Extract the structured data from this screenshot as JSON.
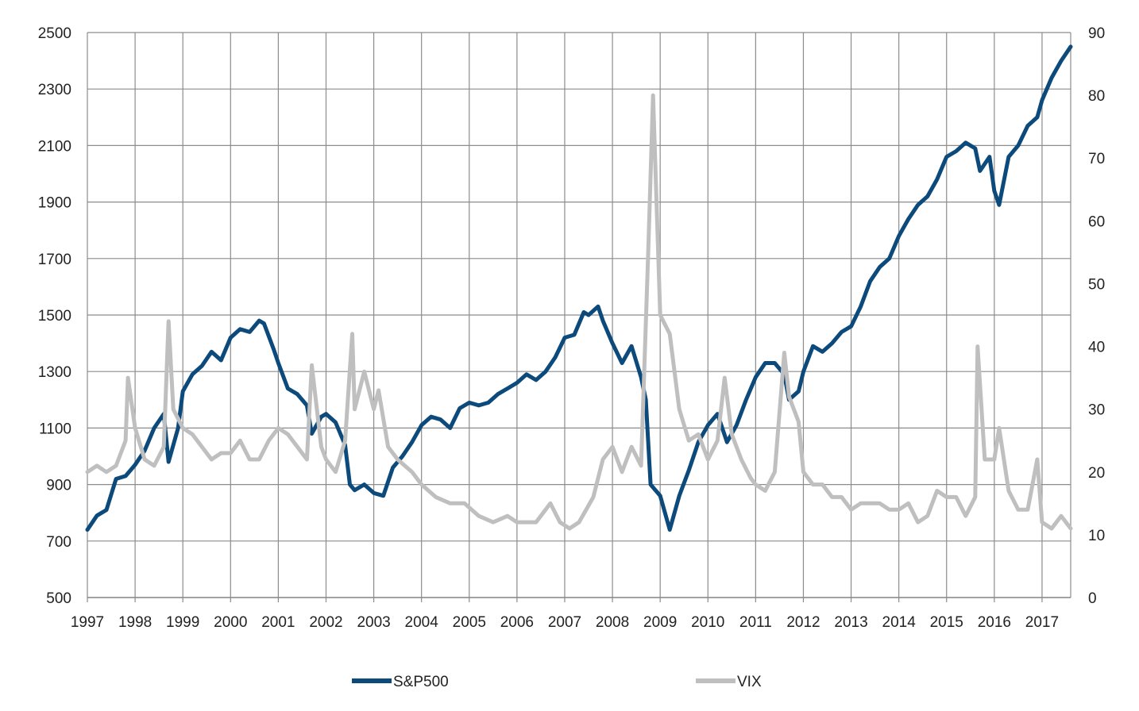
{
  "chart_data": {
    "type": "line",
    "grid": true,
    "legend_position": "bottom",
    "x_ticks": [
      "1997",
      "1998",
      "1999",
      "2000",
      "2001",
      "2002",
      "2003",
      "2004",
      "2005",
      "2006",
      "2007",
      "2008",
      "2009",
      "2010",
      "2011",
      "2012",
      "2013",
      "2014",
      "2015",
      "2016",
      "2017"
    ],
    "xlim": [
      1997.0,
      2017.6
    ],
    "y_left": {
      "ylim": [
        500,
        2500
      ],
      "ticks": [
        500,
        700,
        900,
        1100,
        1300,
        1500,
        1700,
        1900,
        2100,
        2300,
        2500
      ]
    },
    "y_right": {
      "ylim": [
        0,
        90
      ],
      "ticks": [
        0,
        10,
        20,
        30,
        40,
        50,
        60,
        70,
        80,
        90
      ]
    },
    "series": [
      {
        "name": "S&P500",
        "axis": "left",
        "color": "#0d4a7c",
        "x": [
          1997.0,
          1997.2,
          1997.4,
          1997.6,
          1997.8,
          1998.0,
          1998.2,
          1998.4,
          1998.6,
          1998.7,
          1998.9,
          1999.0,
          1999.2,
          1999.4,
          1999.6,
          1999.8,
          2000.0,
          2000.2,
          2000.4,
          2000.6,
          2000.7,
          2000.9,
          2001.0,
          2001.2,
          2001.4,
          2001.6,
          2001.7,
          2001.9,
          2002.0,
          2002.2,
          2002.4,
          2002.5,
          2002.6,
          2002.8,
          2003.0,
          2003.2,
          2003.4,
          2003.6,
          2003.8,
          2004.0,
          2004.2,
          2004.4,
          2004.6,
          2004.8,
          2005.0,
          2005.2,
          2005.4,
          2005.6,
          2005.8,
          2006.0,
          2006.2,
          2006.4,
          2006.6,
          2006.8,
          2007.0,
          2007.2,
          2007.4,
          2007.5,
          2007.7,
          2007.8,
          2008.0,
          2008.2,
          2008.4,
          2008.6,
          2008.7,
          2008.8,
          2008.9,
          2009.0,
          2009.2,
          2009.4,
          2009.6,
          2009.8,
          2010.0,
          2010.2,
          2010.4,
          2010.6,
          2010.8,
          2011.0,
          2011.2,
          2011.4,
          2011.6,
          2011.7,
          2011.9,
          2012.0,
          2012.2,
          2012.4,
          2012.6,
          2012.8,
          2013.0,
          2013.2,
          2013.4,
          2013.6,
          2013.8,
          2014.0,
          2014.2,
          2014.4,
          2014.6,
          2014.8,
          2015.0,
          2015.2,
          2015.4,
          2015.6,
          2015.7,
          2015.9,
          2016.0,
          2016.1,
          2016.3,
          2016.5,
          2016.7,
          2016.9,
          2017.0,
          2017.2,
          2017.4,
          2017.6
        ],
        "values": [
          740,
          790,
          810,
          920,
          930,
          970,
          1020,
          1100,
          1150,
          980,
          1100,
          1230,
          1290,
          1320,
          1370,
          1340,
          1420,
          1450,
          1440,
          1480,
          1470,
          1380,
          1330,
          1240,
          1220,
          1180,
          1080,
          1140,
          1150,
          1120,
          1040,
          900,
          880,
          900,
          870,
          860,
          960,
          1000,
          1050,
          1110,
          1140,
          1130,
          1100,
          1170,
          1190,
          1180,
          1190,
          1220,
          1240,
          1260,
          1290,
          1270,
          1300,
          1350,
          1420,
          1430,
          1510,
          1500,
          1530,
          1480,
          1400,
          1330,
          1390,
          1280,
          1200,
          900,
          880,
          860,
          740,
          860,
          950,
          1050,
          1110,
          1150,
          1050,
          1110,
          1200,
          1280,
          1330,
          1330,
          1290,
          1200,
          1230,
          1300,
          1390,
          1370,
          1400,
          1440,
          1460,
          1530,
          1620,
          1670,
          1700,
          1780,
          1840,
          1890,
          1920,
          1980,
          2060,
          2080,
          2110,
          2090,
          2010,
          2060,
          1940,
          1890,
          2060,
          2100,
          2170,
          2200,
          2260,
          2340,
          2400,
          2450
        ]
      },
      {
        "name": "VIX",
        "axis": "right",
        "color": "#bfbfbf",
        "x": [
          1997.0,
          1997.2,
          1997.4,
          1997.6,
          1997.8,
          1997.85,
          1998.0,
          1998.2,
          1998.4,
          1998.6,
          1998.7,
          1998.8,
          1999.0,
          1999.2,
          1999.4,
          1999.6,
          1999.8,
          2000.0,
          2000.2,
          2000.4,
          2000.6,
          2000.8,
          2001.0,
          2001.2,
          2001.4,
          2001.6,
          2001.7,
          2001.9,
          2002.0,
          2002.2,
          2002.4,
          2002.55,
          2002.6,
          2002.8,
          2003.0,
          2003.1,
          2003.3,
          2003.5,
          2003.8,
          2004.0,
          2004.3,
          2004.6,
          2004.9,
          2005.2,
          2005.5,
          2005.8,
          2006.0,
          2006.4,
          2006.7,
          2006.9,
          2007.1,
          2007.3,
          2007.6,
          2007.8,
          2008.0,
          2008.2,
          2008.4,
          2008.6,
          2008.75,
          2008.85,
          2009.0,
          2009.2,
          2009.4,
          2009.6,
          2009.8,
          2010.0,
          2010.2,
          2010.35,
          2010.5,
          2010.7,
          2010.9,
          2011.0,
          2011.2,
          2011.4,
          2011.6,
          2011.7,
          2011.9,
          2012.0,
          2012.2,
          2012.4,
          2012.6,
          2012.8,
          2013.0,
          2013.2,
          2013.4,
          2013.6,
          2013.8,
          2014.0,
          2014.2,
          2014.4,
          2014.6,
          2014.8,
          2015.0,
          2015.2,
          2015.4,
          2015.6,
          2015.65,
          2015.8,
          2016.0,
          2016.1,
          2016.3,
          2016.5,
          2016.7,
          2016.9,
          2017.0,
          2017.2,
          2017.4,
          2017.6
        ],
        "values": [
          20,
          21,
          20,
          21,
          25,
          35,
          27,
          22,
          21,
          24,
          44,
          30,
          27,
          26,
          24,
          22,
          23,
          23,
          25,
          22,
          22,
          25,
          27,
          26,
          24,
          22,
          37,
          24,
          22,
          20,
          25,
          42,
          30,
          36,
          30,
          33,
          24,
          22,
          20,
          18,
          16,
          15,
          15,
          13,
          12,
          13,
          12,
          12,
          15,
          12,
          11,
          12,
          16,
          22,
          24,
          20,
          24,
          21,
          55,
          80,
          45,
          42,
          30,
          25,
          26,
          22,
          25,
          35,
          26,
          22,
          19,
          18,
          17,
          20,
          39,
          32,
          28,
          20,
          18,
          18,
          16,
          16,
          14,
          15,
          15,
          15,
          14,
          14,
          15,
          12,
          13,
          17,
          16,
          16,
          13,
          16,
          40,
          22,
          22,
          27,
          17,
          14,
          14,
          22,
          12,
          11,
          13,
          11
        ]
      }
    ]
  },
  "legend": [
    {
      "label": "S&P500",
      "color": "#0d4a7c"
    },
    {
      "label": "VIX",
      "color": "#bfbfbf"
    }
  ]
}
